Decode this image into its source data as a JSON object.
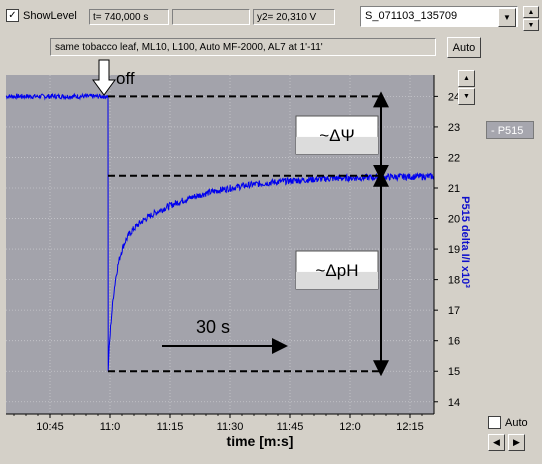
{
  "toolbar": {
    "showlevel_label": "ShowLevel",
    "showlevel_checked": "✓",
    "time_readout": "t= 740,000 s",
    "empty_field": "",
    "y2_readout": "y2= 20,310 V",
    "dataset_select": "S_071103_135709"
  },
  "description": "same tobacco leaf, ML10, L100, Auto MF-2000, AL7 at 1'-11'",
  "auto_button": "Auto",
  "legend_item": "- P515",
  "auto_checkbox_label": "Auto",
  "chart_data": {
    "type": "line",
    "xlabel": "time [m:s]",
    "ylabel": "P515 delta I/I x10³",
    "x_ticks": [
      "10:45",
      "11:0",
      "11:15",
      "11:30",
      "11:45",
      "12:0",
      "12:15"
    ],
    "x_tick_seconds": [
      645,
      660,
      675,
      690,
      705,
      720,
      735
    ],
    "xlim_seconds": [
      634,
      741
    ],
    "y_ticks": [
      "24",
      "23",
      "22",
      "21",
      "20",
      "19",
      "18",
      "17",
      "16",
      "15",
      "14"
    ],
    "ylim": [
      13.6,
      24.7
    ],
    "grid": true,
    "series": [
      {
        "name": "P515",
        "color": "#0000ee"
      }
    ],
    "annotations": {
      "off_label": "off",
      "delta_psi": "~ΔΨ",
      "delta_ph": "~ΔpH",
      "interval": "30 s"
    },
    "levels": {
      "before": 24.0,
      "steady": 21.4,
      "min": 15.0
    }
  }
}
